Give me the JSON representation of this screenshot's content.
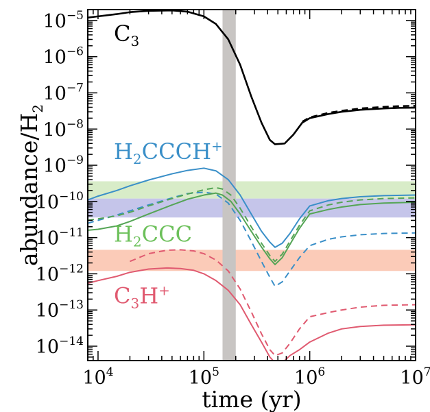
{
  "chart_data": {
    "type": "line",
    "title": "",
    "xlabel": "time (yr)",
    "ylabel": "abundance/H",
    "ylabel_sub": "2",
    "xscale": "log",
    "yscale": "log",
    "xlim": [
      8000,
      10000000
    ],
    "ylim": [
      4e-15,
      2e-05
    ],
    "x_ticks": [
      {
        "base": "10",
        "exp": "4",
        "value": 10000
      },
      {
        "base": "10",
        "exp": "5",
        "value": 100000
      },
      {
        "base": "10",
        "exp": "6",
        "value": 1000000
      },
      {
        "base": "10",
        "exp": "7",
        "value": 10000000
      }
    ],
    "y_ticks": [
      {
        "base": "10",
        "exp": "−14",
        "value": 1e-14
      },
      {
        "base": "10",
        "exp": "−13",
        "value": 1e-13
      },
      {
        "base": "10",
        "exp": "−12",
        "value": 1e-12
      },
      {
        "base": "10",
        "exp": "−11",
        "value": 1e-11
      },
      {
        "base": "10",
        "exp": "−10",
        "value": 1e-10
      },
      {
        "base": "10",
        "exp": "−9",
        "value": 1e-09
      },
      {
        "base": "10",
        "exp": "−8",
        "value": 1e-08
      },
      {
        "base": "10",
        "exp": "−7",
        "value": 1e-07
      },
      {
        "base": "10",
        "exp": "−6",
        "value": 1e-06
      },
      {
        "base": "10",
        "exp": "−5",
        "value": 1e-05
      }
    ],
    "vertical_band": {
      "x_range": [
        150000,
        200000
      ],
      "color": "#c8c5c3"
    },
    "horizontal_bands": [
      {
        "y_range": [
          1.2e-10,
          3.6e-10
        ],
        "color": "#d8ecc8"
      },
      {
        "y_range": [
          3.6e-11,
          1.2e-10
        ],
        "color": "#c5c5ea"
      },
      {
        "y_range": [
          1.2e-12,
          4.6e-12
        ],
        "color": "#fbcbb8"
      }
    ],
    "labels": [
      {
        "parts": [
          {
            "t": "C",
            "s": ""
          },
          {
            "t": "3",
            "s": "sub"
          }
        ],
        "color": "#000000",
        "x": 0.04,
        "y_value": 4.5e-06
      },
      {
        "parts": [
          {
            "t": "H",
            "s": ""
          },
          {
            "t": "2",
            "s": "sub"
          },
          {
            "t": "CCCH",
            "s": ""
          },
          {
            "t": "+",
            "s": "sup"
          }
        ],
        "color": "#3a8fc8",
        "x": 0.04,
        "y_value": 2.5e-09
      },
      {
        "parts": [
          {
            "t": "H",
            "s": ""
          },
          {
            "t": "2",
            "s": "sub"
          },
          {
            "t": "CCC",
            "s": ""
          }
        ],
        "color": "#6cc05a",
        "x": 0.04,
        "y_value": 1.3e-11
      },
      {
        "parts": [
          {
            "t": "C",
            "s": ""
          },
          {
            "t": "3",
            "s": "sub"
          },
          {
            "t": "H",
            "s": ""
          },
          {
            "t": "+",
            "s": "sup"
          }
        ],
        "color": "#e05a70",
        "x": 0.04,
        "y_value": 2.6e-13
      }
    ],
    "series": [
      {
        "color": "#000000",
        "dash": "solid",
        "width": 2.6,
        "x": [
          8000,
          10000,
          15000,
          20000,
          30000,
          50000,
          70000,
          100000,
          130000,
          170000,
          220000,
          280000,
          350000,
          420000,
          470000,
          580000,
          700000,
          850000,
          1000000,
          1500000,
          2000000,
          3000000,
          5000000,
          7000000,
          10000000
        ],
        "y": [
          1.2e-05,
          1.3e-05,
          1.5e-05,
          1.7e-05,
          1.85e-05,
          1.9e-05,
          1.75e-05,
          1.3e-05,
          8e-06,
          3e-06,
          6e-07,
          8e-08,
          1.5e-08,
          5e-09,
          3.8e-09,
          4e-09,
          7e-09,
          1.5e-08,
          2e-08,
          2.6e-08,
          3e-08,
          3.4e-08,
          3.7e-08,
          3.85e-08,
          3.9e-08
        ]
      },
      {
        "color": "#000000",
        "dash": "dashed",
        "width": 2.6,
        "x": [
          850000,
          1000000,
          1500000,
          2000000,
          3000000,
          5000000,
          7000000,
          10000000
        ],
        "y": [
          1.6e-08,
          2.1e-08,
          2.8e-08,
          3.2e-08,
          3.7e-08,
          4.1e-08,
          4.3e-08,
          4.4e-08
        ]
      },
      {
        "color": "#3a8fc8",
        "dash": "solid",
        "width": 2.0,
        "x": [
          8000,
          10000,
          15000,
          20000,
          30000,
          50000,
          70000,
          100000,
          130000,
          170000,
          220000,
          280000,
          350000,
          420000,
          470000,
          550000,
          650000,
          800000,
          1000000,
          1500000,
          2000000,
          3000000,
          5000000,
          10000000
        ],
        "y": [
          1.1e-10,
          1.4e-10,
          2e-10,
          2.7e-10,
          3.9e-10,
          5.8e-10,
          7.2e-10,
          8.3e-10,
          7e-10,
          4e-10,
          1.5e-10,
          4.5e-11,
          1.5e-11,
          7.5e-12,
          5.4e-12,
          7e-12,
          1.3e-11,
          3.3e-11,
          7.5e-11,
          1.05e-10,
          1.2e-10,
          1.35e-10,
          1.45e-10,
          1.5e-10
        ]
      },
      {
        "color": "#3a8fc8",
        "dash": "dashed",
        "width": 2.0,
        "x": [
          8000,
          10000,
          15000,
          20000,
          30000,
          50000,
          70000,
          100000,
          130000,
          170000,
          220000,
          280000,
          350000,
          420000,
          470000,
          550000,
          650000,
          800000,
          1000000,
          1500000,
          2000000,
          3000000,
          5000000,
          10000000
        ],
        "y": [
          2.5e-11,
          3e-11,
          4.2e-11,
          5.5e-11,
          8e-11,
          1.25e-10,
          1.65e-10,
          1.8e-10,
          1.6e-10,
          9e-11,
          3e-11,
          8e-12,
          2.2e-12,
          8e-13,
          4.5e-13,
          6e-13,
          1.2e-12,
          2.8e-12,
          6e-12,
          9e-12,
          1.05e-11,
          1.2e-11,
          1.3e-11,
          1.35e-11
        ]
      },
      {
        "color": "#55a556",
        "dash": "solid",
        "width": 2.0,
        "x": [
          8000,
          10000,
          15000,
          20000,
          30000,
          50000,
          70000,
          100000,
          130000,
          150000,
          180000,
          220000,
          280000,
          350000,
          420000,
          470000,
          550000,
          650000,
          800000,
          1000000,
          1500000,
          2000000,
          3000000,
          5000000,
          10000000
        ],
        "y": [
          1.6e-11,
          1.7e-11,
          2.1e-11,
          2.8e-11,
          4.5e-11,
          8e-11,
          1.15e-10,
          1.5e-10,
          1.7e-10,
          1.5e-10,
          1e-10,
          4.5e-11,
          1.5e-11,
          5.5e-12,
          2.6e-12,
          1.8e-12,
          2.8e-12,
          6.5e-12,
          1.8e-11,
          4.5e-11,
          6e-11,
          7e-11,
          8.2e-11,
          9e-11,
          9.5e-11
        ]
      },
      {
        "color": "#55a556",
        "dash": "dashed",
        "width": 2.0,
        "x": [
          8000,
          10000,
          15000,
          20000,
          30000,
          50000,
          70000,
          100000,
          130000,
          150000,
          180000,
          220000,
          280000,
          350000,
          420000,
          470000,
          550000,
          650000,
          800000,
          1000000,
          1500000,
          2000000,
          3000000,
          5000000,
          10000000
        ],
        "y": [
          3e-11,
          3.3e-11,
          4e-11,
          5e-11,
          7.5e-11,
          1.2e-10,
          1.6e-10,
          2.1e-10,
          2.4e-10,
          2.2e-10,
          1.5e-10,
          6.5e-11,
          2e-11,
          7e-12,
          3.2e-12,
          2.2e-12,
          3.5e-12,
          8e-12,
          2.2e-11,
          5.5e-11,
          8e-11,
          9.5e-11,
          1.1e-10,
          1.2e-10,
          1.25e-10
        ]
      },
      {
        "color": "#e05a70",
        "dash": "solid",
        "width": 2.0,
        "x": [
          8000,
          10000,
          15000,
          20000,
          30000,
          45000,
          60000,
          80000,
          100000,
          130000,
          170000,
          220000,
          280000,
          350000,
          420000,
          470000,
          550000,
          580000,
          650000,
          800000,
          1000000,
          1500000,
          2000000,
          3000000,
          5000000,
          10000000
        ],
        "y": [
          5.5e-13,
          6.5e-13,
          8.5e-13,
          1.1e-12,
          1.35e-12,
          1.45e-12,
          1.4e-12,
          1.25e-12,
          1e-12,
          6.5e-13,
          3.5e-13,
          1.4e-13,
          4e-14,
          1.3e-14,
          5e-15,
          3.5e-15,
          3.5e-15,
          4e-15,
          5.5e-15,
          8e-15,
          1.3e-14,
          2.3e-14,
          3e-14,
          3.5e-14,
          3.8e-14,
          3.9e-14
        ]
      },
      {
        "color": "#e05a70",
        "dash": "dashed",
        "width": 2.0,
        "x": [
          20000,
          30000,
          45000,
          60000,
          80000,
          100000,
          130000,
          170000,
          220000,
          280000,
          350000,
          420000,
          470000,
          550000,
          650000,
          800000,
          1000000,
          1500000,
          2000000,
          3000000,
          5000000,
          10000000
        ],
        "y": [
          2.2e-12,
          3.6e-12,
          4.5e-12,
          4.6e-12,
          4.3e-12,
          3.6e-12,
          2.4e-12,
          1.2e-12,
          3.8e-13,
          9e-14,
          2.2e-14,
          8e-15,
          5.5e-15,
          6.5e-15,
          1.2e-14,
          3e-14,
          6.5e-14,
          8.5e-14,
          1e-13,
          1.2e-13,
          1.35e-13,
          1.4e-13
        ]
      }
    ]
  }
}
